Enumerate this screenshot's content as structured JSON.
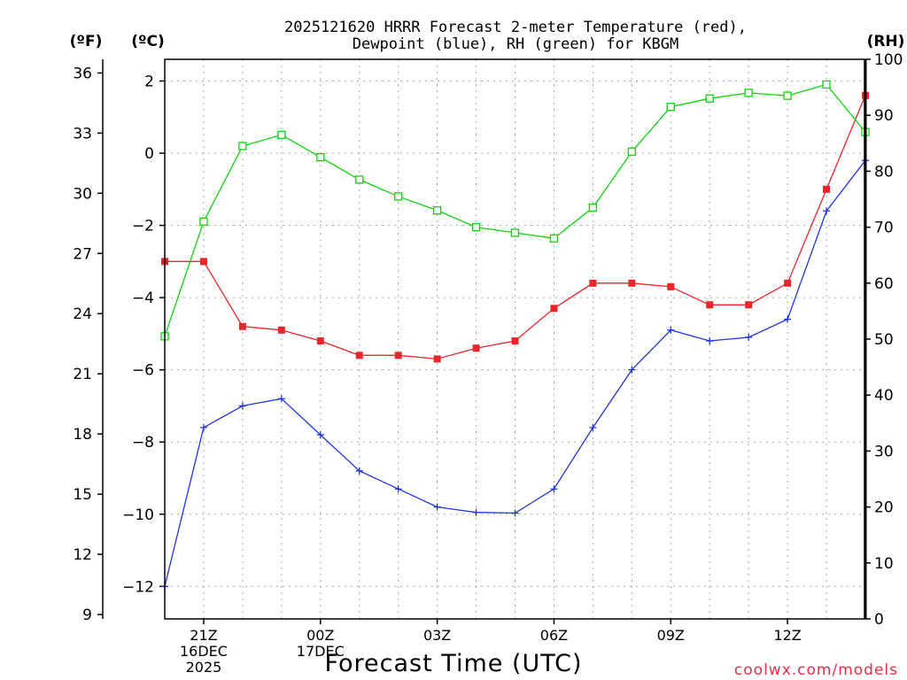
{
  "title_line1": "2025121620 HRRR Forecast 2-meter Temperature (red),",
  "title_line2": "Dewpoint (blue), RH (green) for KBGM",
  "unit_f": "(ºF)",
  "unit_c": "(ºC)",
  "unit_rh": "(RH)",
  "xlabel": "Forecast Time (UTC)",
  "watermark": "coolwx.com/models",
  "colors": {
    "temperature": "#e8262b",
    "dewpoint": "#2135e0",
    "rh": "#12d012",
    "grid": "#a8a8a8",
    "watermark": "#e0304a"
  },
  "chart_data": {
    "type": "line",
    "title": "2025121620 HRRR Forecast 2-meter Temperature (red), Dewpoint (blue), RH (green) for KBGM",
    "xlabel": "Forecast Time (UTC)",
    "x_hours": [
      20,
      21,
      22,
      23,
      24,
      25,
      26,
      27,
      28,
      29,
      30,
      31,
      32,
      33,
      34,
      35,
      36,
      37,
      38
    ],
    "xlim": [
      20,
      38
    ],
    "x_ticks": [
      {
        "hour": 21,
        "label": "21Z",
        "sub1": "16DEC",
        "sub2": "2025"
      },
      {
        "hour": 24,
        "label": "00Z",
        "sub1": "17DEC",
        "sub2": ""
      },
      {
        "hour": 27,
        "label": "03Z",
        "sub1": "",
        "sub2": ""
      },
      {
        "hour": 30,
        "label": "06Z",
        "sub1": "",
        "sub2": ""
      },
      {
        "hour": 33,
        "label": "09Z",
        "sub1": "",
        "sub2": ""
      },
      {
        "hour": 36,
        "label": "12Z",
        "sub1": "",
        "sub2": ""
      }
    ],
    "y_celsius": {
      "range": [
        -12.9,
        2.6
      ],
      "ticks": [
        2,
        0,
        -2,
        -4,
        -6,
        -8,
        -10,
        -12
      ]
    },
    "y_fahrenheit": {
      "ticks": [
        36,
        33,
        30,
        27,
        24,
        21,
        18,
        15,
        12,
        9
      ]
    },
    "y_rh": {
      "range": [
        0,
        100
      ],
      "ticks": [
        100,
        90,
        80,
        70,
        60,
        50,
        40,
        30,
        20,
        10,
        0
      ]
    },
    "series": [
      {
        "name": "Temperature",
        "axis": "celsius",
        "marker": "filled-square",
        "values": [
          -3.0,
          -3.0,
          -4.8,
          -4.9,
          -5.2,
          -5.6,
          -5.6,
          -5.7,
          -5.4,
          -5.2,
          -4.3,
          -3.6,
          -3.6,
          -3.7,
          -4.2,
          -4.2,
          -3.6,
          -1.0,
          1.6
        ]
      },
      {
        "name": "Dewpoint",
        "axis": "celsius",
        "marker": "plus",
        "values": [
          -12.0,
          -7.6,
          -7.0,
          -6.8,
          -7.8,
          -8.8,
          -9.3,
          -9.8,
          -9.95,
          -9.97,
          -9.3,
          -7.6,
          -6.0,
          -4.9,
          -5.2,
          -5.1,
          -4.6,
          -1.6,
          -0.2
        ]
      },
      {
        "name": "RH",
        "axis": "rh",
        "marker": "open-square",
        "values": [
          50.5,
          71,
          84.5,
          86.5,
          82.5,
          78.5,
          75.5,
          73,
          70,
          69,
          68,
          73.5,
          83.5,
          91.5,
          93,
          94,
          93.5,
          95.5,
          87
        ]
      }
    ]
  }
}
